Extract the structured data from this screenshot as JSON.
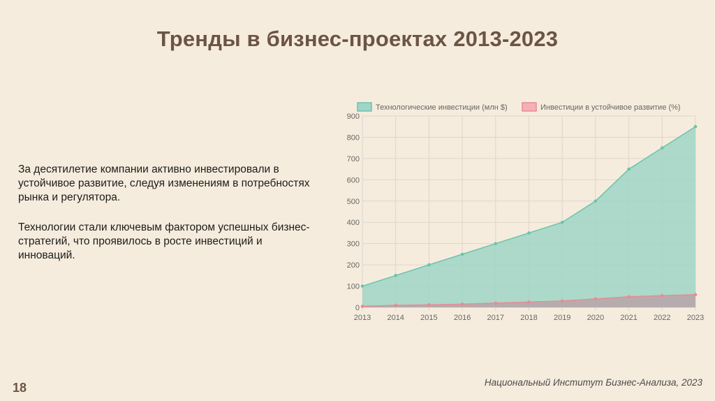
{
  "slide": {
    "title": "Тренды в бизнес-проектах 2013-2023",
    "paragraph1": "За десятилетие компании активно инвестировали в устойчивое развитие, следуя изменениям в потребностях рынка и регулятора.",
    "paragraph2": "Технологии стали ключевым фактором успешных бизнес-стратегий, что проявилось в росте инвестиций и инноваций.",
    "page_number": "18",
    "footer": "Национальный Институт Бизнес-Анализа, 2023"
  },
  "chart_data": {
    "type": "area",
    "x": [
      "2013",
      "2014",
      "2015",
      "2016",
      "2017",
      "2018",
      "2019",
      "2020",
      "2021",
      "2022",
      "2023"
    ],
    "series": [
      {
        "name": "Технологические инвестиции (млн $)",
        "values": [
          100,
          150,
          200,
          250,
          300,
          350,
          400,
          500,
          650,
          750,
          850
        ],
        "fill": "#9fd6c6",
        "stroke": "#6cc3ad"
      },
      {
        "name": "Инвестиции в устойчивое развитие (%)",
        "values": [
          5,
          10,
          12,
          15,
          20,
          25,
          30,
          40,
          50,
          55,
          60
        ],
        "fill": "#b8a6aa",
        "stroke": "#e88a96"
      }
    ],
    "ylim": [
      0,
      900
    ],
    "yticks": [
      0,
      100,
      200,
      300,
      400,
      500,
      600,
      700,
      800,
      900
    ],
    "grid": true,
    "legend": "top"
  }
}
